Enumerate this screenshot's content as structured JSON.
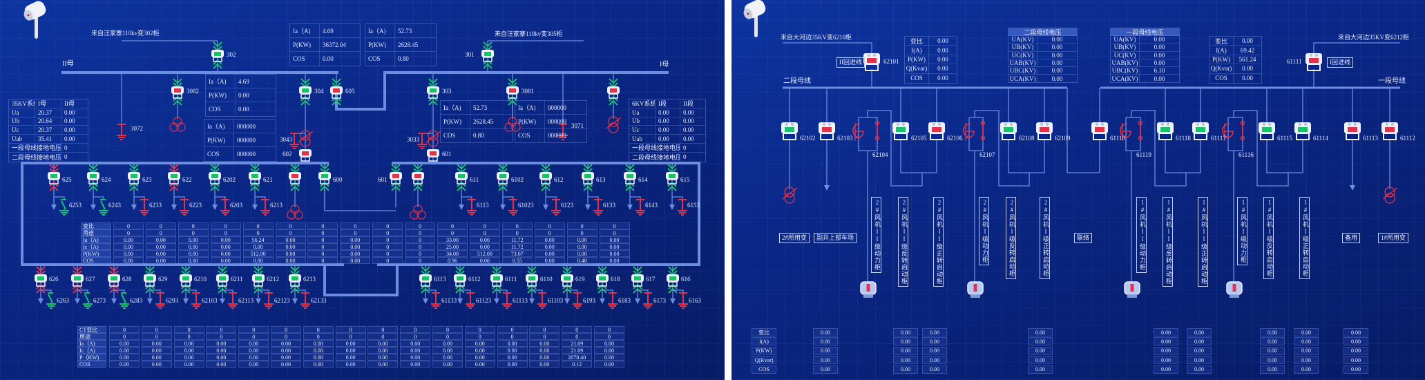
{
  "colors": {
    "bus": "#6d8ee0",
    "closed_green": "#17c26a",
    "open_red": "#e2334b",
    "switch_body": "#eef1f8",
    "text": "#e4eaff"
  },
  "left": {
    "incoming_a": "来自汪家寨110kv变302柜",
    "incoming_b": "来自汪家寨110kv变305柜",
    "bus_ii": "II母",
    "bus_i": "I母",
    "meters": [
      [
        [
          "Ia（A)",
          "4.69"
        ],
        [
          "P(KW)",
          "36372.04"
        ],
        [
          "COS",
          "0.00"
        ]
      ],
      [
        [
          "Ia（A)",
          "52.73"
        ],
        [
          "P(KW)",
          "2628.45"
        ],
        [
          "COS",
          "0.80"
        ]
      ],
      [
        [
          "Ia（A)",
          "4.69"
        ],
        [
          "P(KW)",
          "0.00"
        ],
        [
          "COS",
          "0.00"
        ]
      ],
      [
        [
          "Ia（A)",
          "000000"
        ],
        [
          "P(KW)",
          "000000"
        ],
        [
          "COS",
          "000000"
        ]
      ],
      [
        [
          "Ia（A)",
          "52.73"
        ],
        [
          "P(KW)",
          "2628.45"
        ],
        [
          "COS",
          "0.80"
        ]
      ],
      [
        [
          "Ia（A)",
          "000000"
        ],
        [
          "P(KW)",
          "000000"
        ],
        [
          "COS",
          "000000"
        ]
      ]
    ],
    "sys35": [
      [
        "35KV系统",
        "I母",
        "II母"
      ],
      [
        "Ua",
        "20.37",
        "0.00"
      ],
      [
        "Ub",
        "20.64",
        "0.00"
      ],
      [
        "Uc",
        "20.37",
        "0.00"
      ],
      [
        "Uab",
        "35.41",
        "0.00"
      ],
      [
        "一段母线接地电压",
        "0"
      ],
      [
        "二段母线接地电压",
        "0"
      ]
    ],
    "sys6": [
      [
        "6KV系统",
        "I段",
        "II段"
      ],
      [
        "Ua",
        "0.00",
        "0.00"
      ],
      [
        "Ub",
        "0.00",
        "0.00"
      ],
      [
        "Uc",
        "0.00",
        "0.00"
      ],
      [
        "Uab",
        "0.00",
        "0.00"
      ],
      [
        "一段母线接地电压",
        "0"
      ],
      [
        "二段母线接地电压",
        "0"
      ]
    ],
    "main_switches": [
      {
        "id": "302",
        "status": "green",
        "arrows": "green"
      },
      {
        "id": "3082",
        "status": "red",
        "arrows": "green"
      },
      {
        "id": "304",
        "status": "green",
        "arrows": "green"
      },
      {
        "id": "605",
        "status": "red",
        "arrows": "green"
      },
      {
        "id": "303",
        "status": "green",
        "arrows": "green"
      },
      {
        "id": "3081",
        "status": "red",
        "arrows": "green"
      },
      {
        "id": "301",
        "status": "green",
        "arrows": "green"
      },
      {
        "id": "",
        "status": "red",
        "arrows": "green"
      },
      {
        "id": "602",
        "status": "red",
        "arrows": ""
      },
      {
        "id": "601",
        "status": "red",
        "arrows": ""
      }
    ],
    "grounds": [
      "3072",
      "3071",
      "3043",
      "3033"
    ],
    "feeders_top": [
      {
        "id": "625",
        "status": "green",
        "arrows": "red",
        "ground": "6253",
        "ground_color": "green"
      },
      {
        "id": "624",
        "status": "green",
        "arrows": "green",
        "ground": "6243",
        "ground_color": "green"
      },
      {
        "id": "623",
        "status": "green",
        "arrows": "green",
        "ground": "6233",
        "ground_color": "red"
      },
      {
        "id": "622",
        "status": "green",
        "arrows": "red",
        "ground": "6223",
        "ground_color": "red"
      },
      {
        "id": "6202",
        "status": "green",
        "arrows": "green",
        "ground": "6203",
        "ground_color": "red"
      },
      {
        "id": "621",
        "status": "green",
        "arrows": "green",
        "ground": "6213",
        "ground_color": "red"
      },
      {
        "id": "",
        "status": "red",
        "arrows": "green",
        "ground": "",
        "ground_color": ""
      },
      {
        "id": "600",
        "status": "green",
        "arrows": "green",
        "ground": "",
        "ground_color": ""
      },
      {
        "id": "601",
        "status": "red",
        "arrows": "green",
        "ground": "",
        "ground_color": ""
      },
      {
        "id": "",
        "status": "red",
        "arrows": "green",
        "ground": "",
        "ground_color": ""
      },
      {
        "id": "611",
        "status": "green",
        "arrows": "green",
        "ground": "6113",
        "ground_color": "red"
      },
      {
        "id": "6102",
        "status": "green",
        "arrows": "green",
        "ground": "61023",
        "ground_color": "red"
      },
      {
        "id": "612",
        "status": "green",
        "arrows": "green",
        "ground": "6123",
        "ground_color": "red"
      },
      {
        "id": "613",
        "status": "green",
        "arrows": "green",
        "ground": "6133",
        "ground_color": "red"
      },
      {
        "id": "614",
        "status": "green",
        "arrows": "green",
        "ground": "6143",
        "ground_color": "red"
      },
      {
        "id": "615",
        "status": "green",
        "arrows": "green",
        "ground": "6153",
        "ground_color": "red"
      }
    ],
    "feeders_bottom": [
      {
        "id": "626",
        "status": "green",
        "arrows": "red",
        "ground": "6263",
        "ground_color": "green"
      },
      {
        "id": "627",
        "status": "green",
        "arrows": "red",
        "ground": "6273",
        "ground_color": "green"
      },
      {
        "id": "628",
        "status": "green",
        "arrows": "red",
        "ground": "6283",
        "ground_color": "green"
      },
      {
        "id": "629",
        "status": "green",
        "arrows": "green",
        "ground": "6293",
        "ground_color": "red"
      },
      {
        "id": "6210",
        "status": "green",
        "arrows": "green",
        "ground": "62103",
        "ground_color": "red"
      },
      {
        "id": "6211",
        "status": "green",
        "arrows": "green",
        "ground": "62113",
        "ground_color": "red"
      },
      {
        "id": "6212",
        "status": "green",
        "arrows": "green",
        "ground": "62123",
        "ground_color": "red"
      },
      {
        "id": "6213",
        "status": "green",
        "arrows": "green",
        "ground": "62133",
        "ground_color": "red"
      },
      {
        "id": "6113",
        "status": "green",
        "arrows": "green",
        "ground": "61133",
        "ground_color": "red"
      },
      {
        "id": "6112",
        "status": "green",
        "arrows": "green",
        "ground": "61123",
        "ground_color": "red"
      },
      {
        "id": "6111",
        "status": "green",
        "arrows": "green",
        "ground": "61113",
        "ground_color": "red"
      },
      {
        "id": "6110",
        "status": "green",
        "arrows": "green",
        "ground": "61103",
        "ground_color": "red"
      },
      {
        "id": "619",
        "status": "green",
        "arrows": "green",
        "ground": "6193",
        "ground_color": "red"
      },
      {
        "id": "618",
        "status": "green",
        "arrows": "green",
        "ground": "6183",
        "ground_color": "red"
      },
      {
        "id": "617",
        "status": "green",
        "arrows": "green",
        "ground": "6173",
        "ground_color": "red"
      },
      {
        "id": "616",
        "status": "green",
        "arrows": "green",
        "ground": "6163",
        "ground_color": "red"
      }
    ],
    "table_top": [
      {
        "label": "变比",
        "values": [
          "0",
          "0",
          "0",
          "0",
          "0",
          "0",
          "0",
          "0",
          "0",
          "0",
          "0",
          "0",
          "0",
          "0",
          "0",
          "0"
        ]
      },
      {
        "label": "用途",
        "values": [
          "0",
          "0",
          "0",
          "0",
          "0",
          "0",
          "0",
          "0",
          "0",
          "0",
          "0",
          "0",
          "0",
          "0",
          "0",
          "0"
        ]
      },
      {
        "label": "Ia（A)",
        "values": [
          "0.00",
          "0.00",
          "0.00",
          "0.00",
          "56.24",
          "0.00",
          "0",
          "0.00",
          "0",
          "0",
          "33.00",
          "0.00",
          "11.72",
          "0.00",
          "0.00",
          "0.00"
        ]
      },
      {
        "label": "Ic（A)",
        "values": [
          "0.00",
          "0.00",
          "0.00",
          "0.00",
          "0.00",
          "0.00",
          "0",
          "0.00",
          "0",
          "0",
          "25.00",
          "0.00",
          "11.72",
          "0.00",
          "0.00",
          "0.00"
        ]
      },
      {
        "label": "P(KW)",
        "values": [
          "0.00",
          "0.00",
          "0.00",
          "0.00",
          "512.00",
          "0.00",
          "0",
          "0.00",
          "0",
          "0",
          "34.00",
          "512.00",
          "73.07",
          "0.00",
          "0.00",
          "0.00"
        ]
      },
      {
        "label": "COS",
        "values": [
          "0.00",
          "0.00",
          "0.00",
          "0.00",
          "0.00",
          "0.00",
          "0",
          "0.00",
          "0",
          "0",
          "0.96",
          "0.00",
          "0.55",
          "0.00",
          "0.48",
          "0.00"
        ]
      }
    ],
    "table_bottom": [
      {
        "label": "CT变比",
        "values": [
          "0",
          "0",
          "0",
          "0",
          "0",
          "0",
          "0",
          "0",
          "0",
          "0",
          "0",
          "0",
          "0",
          "0",
          "0",
          "0"
        ]
      },
      {
        "label": "用途",
        "values": [
          "0",
          "0",
          "0",
          "0",
          "0",
          "0",
          "0",
          "0",
          "0",
          "0",
          "0",
          "0",
          "0",
          "0",
          "0",
          "0"
        ]
      },
      {
        "label": "Ia（A)",
        "values": [
          "0.00",
          "0.00",
          "0.00",
          "0.00",
          "0.00",
          "0.00",
          "0.00",
          "0.00",
          "0.00",
          "0.00",
          "0.00",
          "0.00",
          "0.00",
          "0.00",
          "21.09",
          "0.00"
        ]
      },
      {
        "label": "Ic（A)",
        "values": [
          "0.00",
          "0.00",
          "0.00",
          "0.00",
          "0.00",
          "0.00",
          "0.00",
          "0.00",
          "0.00",
          "0.00",
          "0.00",
          "0.00",
          "0.00",
          "0.00",
          "21.09",
          "0.00"
        ]
      },
      {
        "label": "P（KW)",
        "values": [
          "0.00",
          "0.00",
          "0.00",
          "0.00",
          "0.00",
          "0.00",
          "0.00",
          "0.00",
          "0.00",
          "0.00",
          "0.00",
          "0.00",
          "0.00",
          "0.00",
          "2078.40",
          "0.00"
        ]
      },
      {
        "label": "COS",
        "values": [
          "0.00",
          "0.00",
          "0.00",
          "0.00",
          "0.00",
          "0.00",
          "0.00",
          "0.00",
          "0.00",
          "0.00",
          "0.00",
          "0.00",
          "0.00",
          "0.00",
          "0.12",
          "0.00"
        ]
      }
    ]
  },
  "right": {
    "incoming_ii": "来自大河边35KV变6210柜",
    "incoming_i": "来自大河边35KV变6212柜",
    "line_ii_tag": "II回进线",
    "line_i_tag": "I回进线",
    "bus_ii": "二段母线",
    "bus_i": "一段母线",
    "meter_ii": [
      [
        "变比",
        "0.00"
      ],
      [
        "I(A)",
        "0.00"
      ],
      [
        "P(KW)",
        "0.00"
      ],
      [
        "Q(Kvar)",
        "0.00"
      ],
      [
        "COS",
        "0.00"
      ]
    ],
    "meter_i": [
      [
        "变比",
        "0.00"
      ],
      [
        "I(A)",
        "69.42"
      ],
      [
        "P(KW)",
        "561.24"
      ],
      [
        "Q(Kvar)",
        "0.00"
      ],
      [
        "COS",
        "0.00"
      ]
    ],
    "bus_voltage_ii": [
      [
        "二段母线电压"
      ],
      [
        "UA(KV)",
        "0.00"
      ],
      [
        "UB(KV)",
        "0.00"
      ],
      [
        "UC(KV)",
        "0.00"
      ],
      [
        "UAB(KV)",
        "0.00"
      ],
      [
        "UBC(KV)",
        "0.00"
      ],
      [
        "UCA(KV)",
        "0.00"
      ]
    ],
    "bus_voltage_i": [
      [
        "一段母线电压"
      ],
      [
        "UA(KV)",
        "0.00"
      ],
      [
        "UB(KV)",
        "0.00"
      ],
      [
        "UC(KV)",
        "0.00"
      ],
      [
        "UAB(KV)",
        "0.00"
      ],
      [
        "UBC(KV)",
        "6.10"
      ],
      [
        "UCA(KV)",
        "0.00"
      ]
    ],
    "incoming_switches": [
      {
        "id": "62101",
        "status": "red"
      },
      {
        "id": "61111",
        "status": "red"
      }
    ],
    "switches": [
      {
        "id": "62102",
        "status": "green"
      },
      {
        "id": "62103",
        "status": "red"
      },
      {
        "id": "62105",
        "status": "green"
      },
      {
        "id": "62106",
        "status": "red"
      },
      {
        "id": "62108",
        "status": "green"
      },
      {
        "id": "62109",
        "status": "red"
      },
      {
        "id": "61110",
        "status": "red"
      },
      {
        "id": "61118",
        "status": "green"
      },
      {
        "id": "61117",
        "status": "green"
      },
      {
        "id": "61115",
        "status": "green"
      },
      {
        "id": "61114",
        "status": "green"
      },
      {
        "id": "61113",
        "status": "red"
      },
      {
        "id": "61112",
        "status": "red"
      }
    ],
    "starter_groups": [
      "62104",
      "62107",
      "61119",
      "61116"
    ],
    "cabinet_labels": [
      "2#风机II级动力柜",
      "2#风机II级反转启动柜",
      "2#风机II级正转启动柜",
      "2#风机I级动力柜",
      "2#风机I级反转启动柜",
      "2#风机I级正转启动柜",
      "1#风机II级动力柜",
      "1#风机II级反转启动柜",
      "1#风机II级正转启动柜",
      "1#风机I级动力柜",
      "1#风机I级反转启动柜",
      "1#风机I级正转启动柜"
    ],
    "tags": [
      "2#所用变",
      "副井上部车场",
      "联络",
      "备用",
      "1#所用变"
    ],
    "bottom_table": {
      "labels": [
        "变比",
        "I(A)",
        "P(KW)",
        "Q(Kvar)",
        "COS"
      ],
      "columns": [
        [
          "0.00",
          "0.00",
          "0.00",
          "0.00",
          "0.00"
        ],
        [
          "0.00",
          "0.00",
          "0.00",
          "0.00",
          "0.00"
        ],
        [
          "0.00",
          "0.00",
          "0.00",
          "0.00",
          "0.00"
        ],
        [
          "0.00",
          "0.00",
          "0.00",
          "0.00",
          "0.00"
        ],
        [
          "0.00",
          "0.00",
          "0.00",
          "0.00",
          "0.00"
        ],
        [
          "0.00",
          "0.00",
          "0.00",
          "0.00",
          "0.00"
        ],
        [
          "0.00",
          "0.00",
          "0.00",
          "0.00",
          "0.00"
        ],
        [
          "0.00",
          "0.00",
          "0.00",
          "0.00",
          "0.00"
        ],
        [
          "0.00",
          "0.00",
          "0.00",
          "0.00",
          "0.00"
        ]
      ]
    }
  }
}
